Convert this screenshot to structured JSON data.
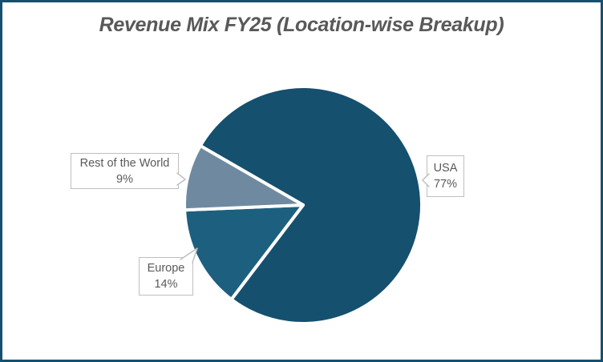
{
  "title": {
    "text": "Revenue Mix FY25 (Location-wise Breakup)"
  },
  "colors": {
    "frame_border": "#15506E",
    "background": "#FFFFFF",
    "title_text": "#595959",
    "label_text": "#595959",
    "callout_border": "#BFBFBF",
    "slice_separator": "#FFFFFF"
  },
  "chart_data": {
    "type": "pie",
    "title": "Revenue Mix FY25 (Location-wise Breakup)",
    "categories": [
      "USA",
      "Europe",
      "Rest of the World"
    ],
    "values": [
      77,
      14,
      9
    ],
    "unit": "%",
    "slices": [
      {
        "label": "USA",
        "value_pct": 77,
        "color": "#15506E"
      },
      {
        "label": "Europe",
        "value_pct": 14,
        "color": "#1D5F7E"
      },
      {
        "label": "Rest of the World",
        "value_pct": 9,
        "color": "#6F8AA0"
      }
    ],
    "start_angle_deg": 300,
    "direction": "clockwise",
    "legend": "none",
    "label_style": "external callout boxes with category name and percent"
  },
  "callouts": {
    "usa": {
      "name": "USA",
      "pct": "77%"
    },
    "europe": {
      "name": "Europe",
      "pct": "14%"
    },
    "row": {
      "name": "Rest of the World",
      "pct": "9%"
    }
  }
}
